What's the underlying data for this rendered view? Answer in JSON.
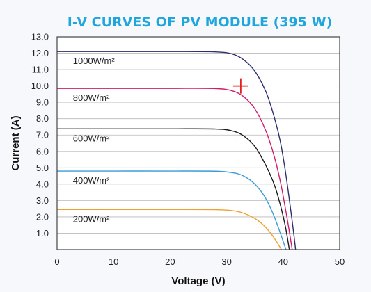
{
  "chart_data": {
    "type": "line",
    "title": "I-V CURVES OF PV MODULE (395 W)",
    "xlabel": "Voltage (V)",
    "ylabel": "Current (A)",
    "xlim": [
      0,
      50
    ],
    "ylim": [
      0,
      13
    ],
    "x_ticks": [
      "0",
      "10",
      "20",
      "30",
      "40",
      "50"
    ],
    "y_ticks": [
      "1.0",
      "2.0",
      "3.0",
      "4.0",
      "5.0",
      "6.0",
      "7.0",
      "8.0",
      "9.0",
      "10.0",
      "11.0",
      "12.0",
      "13.0"
    ],
    "grid": true,
    "series": [
      {
        "name": "1000W/m²",
        "color": "#2d2f6b",
        "points": [
          [
            0,
            12.1
          ],
          [
            10,
            12.1
          ],
          [
            20,
            12.1
          ],
          [
            28,
            12.08
          ],
          [
            31,
            11.95
          ],
          [
            33,
            11.6
          ],
          [
            35,
            10.9
          ],
          [
            37,
            9.6
          ],
          [
            38.5,
            8.0
          ],
          [
            39.5,
            6.6
          ],
          [
            40.3,
            5.0
          ],
          [
            41,
            3.3
          ],
          [
            41.5,
            2.0
          ],
          [
            41.9,
            0.9
          ],
          [
            42.2,
            0
          ]
        ]
      },
      {
        "name": "800W/m²",
        "color": "#d61a6b",
        "points": [
          [
            0,
            9.85
          ],
          [
            10,
            9.85
          ],
          [
            20,
            9.85
          ],
          [
            28,
            9.84
          ],
          [
            31,
            9.7
          ],
          [
            33,
            9.35
          ],
          [
            35,
            8.6
          ],
          [
            37,
            7.2
          ],
          [
            38.5,
            5.6
          ],
          [
            39.6,
            4.0
          ],
          [
            40.4,
            2.5
          ],
          [
            41,
            1.3
          ],
          [
            41.6,
            0
          ]
        ]
      },
      {
        "name": "600W/m²",
        "color": "#1a1a1a",
        "points": [
          [
            0,
            7.38
          ],
          [
            10,
            7.38
          ],
          [
            20,
            7.38
          ],
          [
            28,
            7.37
          ],
          [
            31,
            7.25
          ],
          [
            33,
            6.95
          ],
          [
            35,
            6.3
          ],
          [
            37,
            5.1
          ],
          [
            38.5,
            3.9
          ],
          [
            39.6,
            2.6
          ],
          [
            40.4,
            1.4
          ],
          [
            41.1,
            0
          ]
        ]
      },
      {
        "name": "400W/m²",
        "color": "#3b9bd8",
        "points": [
          [
            0,
            4.8
          ],
          [
            10,
            4.8
          ],
          [
            20,
            4.8
          ],
          [
            28,
            4.79
          ],
          [
            31,
            4.7
          ],
          [
            33,
            4.5
          ],
          [
            35,
            4.0
          ],
          [
            36.8,
            3.2
          ],
          [
            38.2,
            2.2
          ],
          [
            39.3,
            1.2
          ],
          [
            40.5,
            0
          ]
        ]
      },
      {
        "name": "200W/m²",
        "color": "#f0a030",
        "points": [
          [
            0,
            2.45
          ],
          [
            10,
            2.45
          ],
          [
            20,
            2.45
          ],
          [
            28,
            2.44
          ],
          [
            31,
            2.38
          ],
          [
            33,
            2.22
          ],
          [
            35,
            1.9
          ],
          [
            36.5,
            1.5
          ],
          [
            37.8,
            1.0
          ],
          [
            38.8,
            0.5
          ],
          [
            39.7,
            0
          ]
        ]
      }
    ],
    "annotations": [
      {
        "type": "marker",
        "shape": "cross",
        "color": "#e41d1d",
        "x": 32.5,
        "y": 10.0
      }
    ]
  }
}
